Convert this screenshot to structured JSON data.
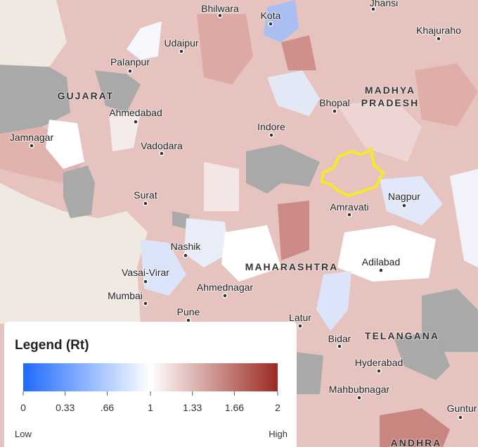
{
  "map": {
    "labels": [
      "Bhilwara",
      "Kota",
      "Jhansi",
      "Khajuraho",
      "Udaipur",
      "Palanpur",
      "GUJARAT",
      "MADHYA",
      "PRADESH",
      "Bhopal",
      "Ahmedabad",
      "Indore",
      "Jamnagar",
      "Vadodara",
      "Surat",
      "Amravati",
      "Nagpur",
      "Nashik",
      "MAHARASHTRA",
      "Adilabad",
      "Vasai-Virar",
      "Ahmednagar",
      "Mumbai",
      "Pune",
      "Latur",
      "TELANGANA",
      "Bidar",
      "Hyderabad",
      "Mahbubnagar",
      "Guntur",
      "ANDHRA"
    ]
  },
  "legend": {
    "title": "Legend (Rt)",
    "ticks": [
      0,
      0.33,
      {
        "value": 0.66,
        "label": ".66"
      },
      1,
      1.33,
      1.66,
      2
    ],
    "colors": [
      "#1f6bff",
      "#ffffff",
      "#9b2a22"
    ],
    "low": "Low",
    "high": "High"
  }
}
